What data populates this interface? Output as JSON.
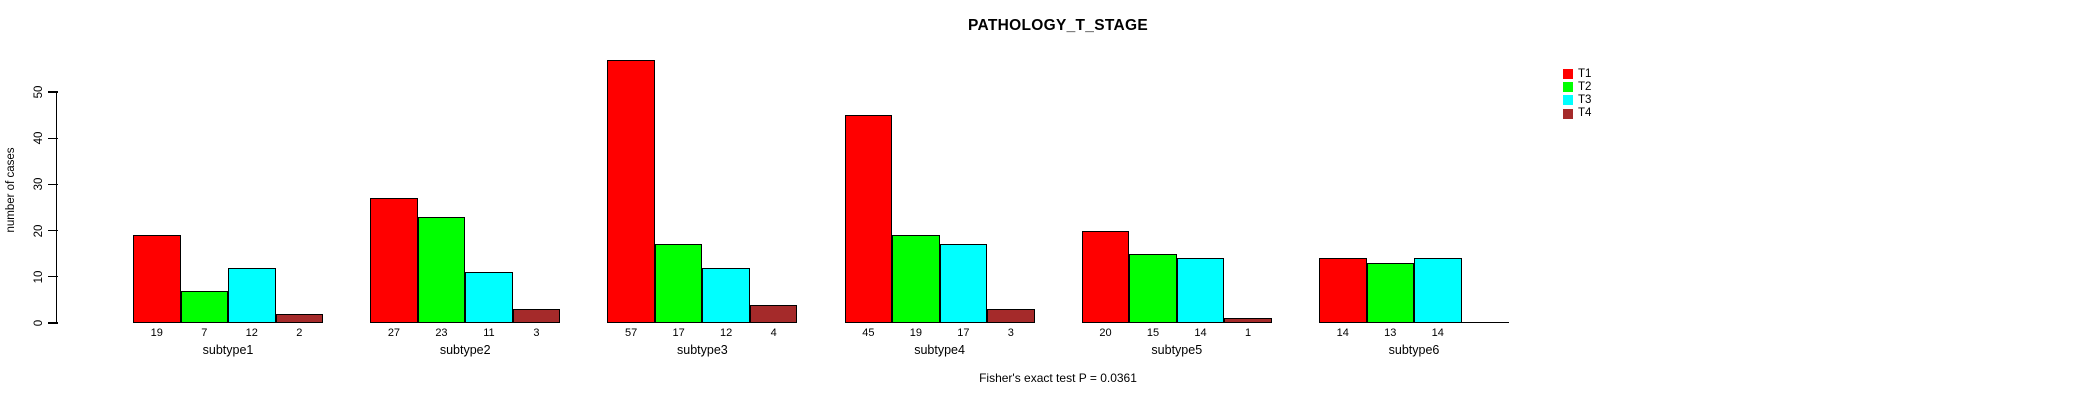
{
  "chart_data": {
    "type": "bar",
    "grouped": true,
    "title": "PATHOLOGY_T_STAGE",
    "ylabel": "number of cases",
    "xlabel": "",
    "categories": [
      "subtype1",
      "subtype2",
      "subtype3",
      "subtype4",
      "subtype5",
      "subtype6"
    ],
    "series": [
      {
        "name": "T1",
        "color": "#ff0000",
        "values": [
          19,
          27,
          57,
          45,
          20,
          14
        ]
      },
      {
        "name": "T2",
        "color": "#00ff00",
        "values": [
          7,
          23,
          17,
          19,
          15,
          13
        ]
      },
      {
        "name": "T3",
        "color": "#00ffff",
        "values": [
          12,
          11,
          12,
          17,
          14,
          14
        ]
      },
      {
        "name": "T4",
        "color": "#a52a2a",
        "values": [
          2,
          3,
          4,
          3,
          1,
          0
        ]
      }
    ],
    "yticks": [
      0,
      10,
      20,
      30,
      40,
      50
    ],
    "ylim": [
      0,
      57
    ],
    "grid": false,
    "bar_value_labels": true,
    "zero_value_labels_hidden": true,
    "legend_position": "right",
    "legend_entries": [
      "T1",
      "T2",
      "T3",
      "T4"
    ],
    "annotation": "Fisher's exact test P = 0.0361",
    "bar_border_color": "#000000",
    "background_color": "#ffffff"
  }
}
